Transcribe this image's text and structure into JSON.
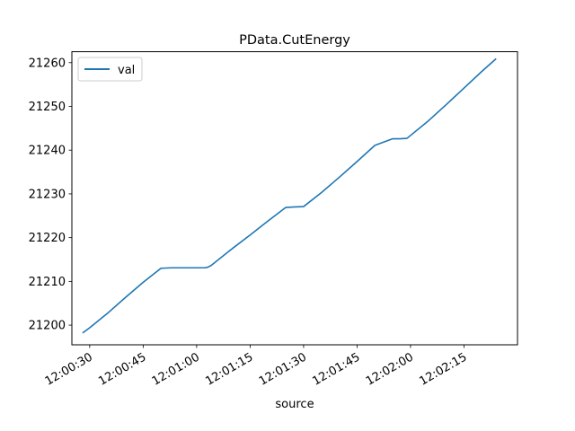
{
  "chart_data": {
    "type": "line",
    "title": "PData.CutEnergy",
    "xlabel": "source",
    "ylabel": "",
    "x_format": "time HH:MM:SS",
    "xlim": [
      "12:00:25",
      "12:02:30"
    ],
    "ylim": [
      21195.5,
      21262.5
    ],
    "x_ticks": [
      "12:00:30",
      "12:00:45",
      "12:01:00",
      "12:01:15",
      "12:01:30",
      "12:01:45",
      "12:02:00",
      "12:02:15"
    ],
    "y_ticks": [
      21200,
      21210,
      21220,
      21230,
      21240,
      21250,
      21260
    ],
    "grid": false,
    "legend": {
      "position": "top-left"
    },
    "series": [
      {
        "name": "val",
        "color": "#1f77b4",
        "x": [
          "12:00:28",
          "12:00:30",
          "12:00:35",
          "12:00:40",
          "12:00:45",
          "12:00:50",
          "12:00:53",
          "12:00:55",
          "12:01:00",
          "12:01:02",
          "12:01:03",
          "12:01:04",
          "12:01:10",
          "12:01:15",
          "12:01:20",
          "12:01:25",
          "12:01:27",
          "12:01:30",
          "12:01:35",
          "12:01:40",
          "12:01:45",
          "12:01:50",
          "12:01:55",
          "12:01:57",
          "12:01:59",
          "12:02:05",
          "12:02:10",
          "12:02:15",
          "12:02:20",
          "12:02:24"
        ],
        "y": [
          21198.2,
          21199.4,
          21202.7,
          21206.3,
          21209.8,
          21213.0,
          21213.1,
          21213.1,
          21213.1,
          21213.1,
          21213.2,
          21213.6,
          21217.5,
          21220.6,
          21223.8,
          21226.9,
          21227.0,
          21227.1,
          21230.3,
          21233.8,
          21237.4,
          21241.1,
          21242.6,
          21242.6,
          21242.7,
          21246.7,
          21250.4,
          21254.2,
          21258.0,
          21260.9
        ]
      }
    ]
  }
}
